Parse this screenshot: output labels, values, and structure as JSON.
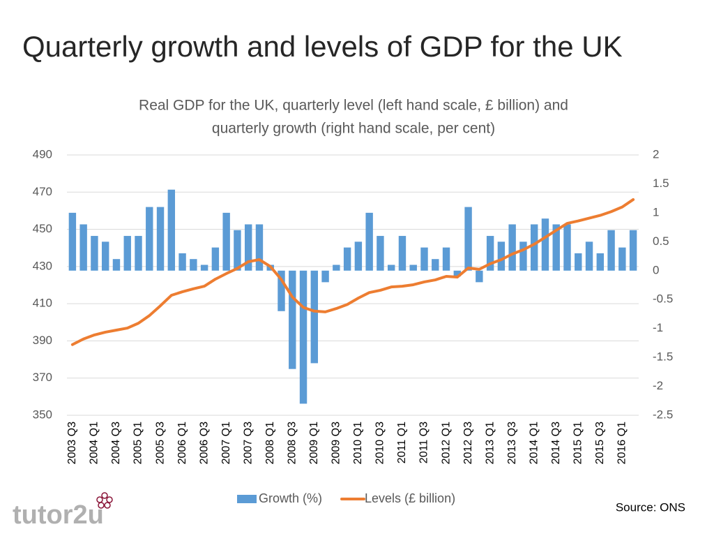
{
  "header": {
    "title": "Quarterly growth and levels of GDP for the UK"
  },
  "chart_data": {
    "type": "combo",
    "title": [
      "Real GDP for the UK, quarterly level (left hand scale, £ billion) and",
      "quarterly growth (right hand scale, per cent)"
    ],
    "categories": [
      "2003 Q3",
      null,
      "2004 Q1",
      null,
      "2004 Q3",
      null,
      "2005 Q1",
      null,
      "2005 Q3",
      null,
      "2006 Q1",
      null,
      "2006 Q3",
      null,
      "2007 Q1",
      null,
      "2007 Q3",
      null,
      "2008 Q1",
      null,
      "2008 Q3",
      null,
      "2009 Q1",
      null,
      "2009 Q3",
      null,
      "2010 Q1",
      null,
      "2010 Q3",
      null,
      "2011 Q1",
      null,
      "2011 Q3",
      null,
      "2012 Q1",
      null,
      "2012 Q3",
      null,
      "2013 Q1",
      null,
      "2013 Q3",
      null,
      "2014 Q1",
      null,
      "2014 Q3",
      null,
      "2015 Q1",
      null,
      "2015 Q3",
      null,
      "2016 Q1",
      null
    ],
    "series": [
      {
        "name": "Growth (%)",
        "type": "bar",
        "axis": "y2",
        "color": "#5b9bd5",
        "values": [
          1.0,
          0.8,
          0.6,
          0.5,
          0.2,
          0.6,
          0.6,
          1.1,
          1.1,
          1.4,
          0.3,
          0.2,
          0.1,
          0.4,
          1.0,
          0.7,
          0.8,
          0.8,
          0.1,
          -0.7,
          -1.7,
          -2.3,
          -1.6,
          -0.2,
          0.1,
          0.4,
          0.5,
          1.0,
          0.6,
          0.1,
          0.6,
          0.1,
          0.4,
          0.2,
          0.4,
          -0.1,
          1.1,
          -0.2,
          0.6,
          0.5,
          0.8,
          0.5,
          0.8,
          0.9,
          0.8,
          0.8,
          0.3,
          0.5,
          0.3,
          0.7,
          0.4,
          0.7
        ]
      },
      {
        "name": "Levels (£ billion)",
        "type": "line",
        "color": "#ed7d31",
        "values": [
          388,
          391,
          393.2,
          394.7,
          395.8,
          396.9,
          399.5,
          403.6,
          408.9,
          414.5,
          416.4,
          418,
          419.4,
          423.2,
          426.2,
          429,
          432.6,
          433.7,
          430,
          423,
          413.6,
          408,
          406,
          405.6,
          407.4,
          409.6,
          413,
          416,
          417.2,
          419,
          419.4,
          420.2,
          421.7,
          422.8,
          424.7,
          424.3,
          429.2,
          428.5,
          431.5,
          433.7,
          436.7,
          439,
          442,
          445.7,
          449.5,
          453.2,
          454.5,
          456,
          457.5,
          459.5,
          462,
          466
        ]
      }
    ],
    "ylim": [
      350,
      490
    ],
    "yticks": [
      350,
      370,
      390,
      410,
      430,
      450,
      470,
      490
    ],
    "y2lim": [
      -2.5,
      2
    ],
    "y2ticks": [
      -2.5,
      -2,
      -1.5,
      -1,
      -0.5,
      0,
      0.5,
      1,
      1.5,
      2
    ],
    "grid": true,
    "legend": "bottom",
    "source": "Source: ONS"
  },
  "logo": "tutor2u"
}
